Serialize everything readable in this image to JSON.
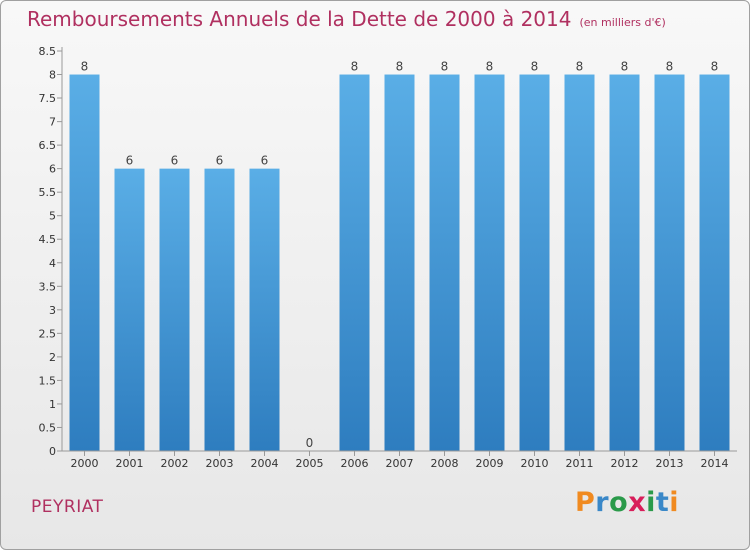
{
  "header": {
    "title": "Remboursements Annuels de la Dette de 2000 à 2014",
    "unit": "(en milliers d'€)"
  },
  "footer": {
    "commune": "PEYRIAT",
    "logo_text": "Proxiti"
  },
  "colors": {
    "title": "#b03060",
    "bar_top": "#5aaee6",
    "bar_bottom": "#2e7dbf",
    "logo_letters": [
      "#f08a20",
      "#3a88c8",
      "#2a9a4a",
      "#d81e5a",
      "#2a9a4a",
      "#3a88c8",
      "#f08a20"
    ]
  },
  "chart_data": {
    "type": "bar",
    "title": "Remboursements Annuels de la Dette de 2000 à 2014",
    "xlabel": "",
    "ylabel": "",
    "categories": [
      "2000",
      "2001",
      "2002",
      "2003",
      "2004",
      "2005",
      "2006",
      "2007",
      "2008",
      "2009",
      "2010",
      "2011",
      "2012",
      "2013",
      "2014"
    ],
    "values": [
      8,
      6,
      6,
      6,
      6,
      0,
      8,
      8,
      8,
      8,
      8,
      8,
      8,
      8,
      8
    ],
    "data_labels": [
      "8",
      "6",
      "6",
      "6",
      "6",
      "0",
      "8",
      "8",
      "8",
      "8",
      "8",
      "8",
      "8",
      "8",
      "8"
    ],
    "ylim": [
      0,
      8.5
    ],
    "yticks": [
      "0",
      "0.5",
      "1",
      "1.5",
      "2",
      "2.5",
      "3",
      "3.5",
      "4",
      "4.5",
      "5",
      "5.5",
      "6",
      "6.5",
      "7",
      "7.5",
      "8",
      "8.5"
    ],
    "grid": false,
    "legend": "none"
  }
}
